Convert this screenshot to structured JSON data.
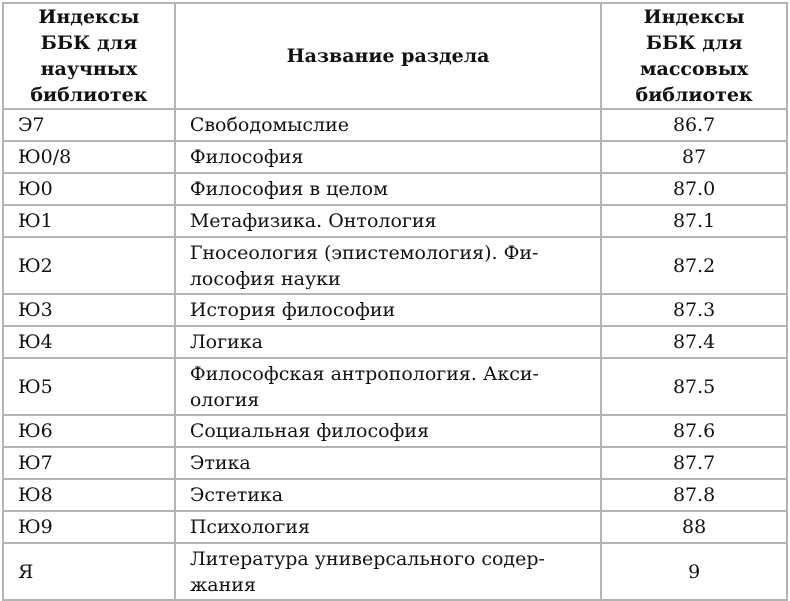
{
  "table": {
    "headers": [
      "Индексы ББК для научных библиотек",
      "Название раздела",
      "Индексы ББК для массовых библиотек"
    ],
    "rows": [
      {
        "sci": "Э7",
        "name": "Свободомыслие",
        "mass": "86.7"
      },
      {
        "sci": "Ю0/8",
        "name": "Философия",
        "mass": "87"
      },
      {
        "sci": "Ю0",
        "name": "Философия в целом",
        "mass": "87.0"
      },
      {
        "sci": "Ю1",
        "name": "Метафизика. Онтология",
        "mass": "87.1"
      },
      {
        "sci": "Ю2",
        "name": "Гносеология (эпистемология). Фи-лософия науки",
        "mass": "87.2"
      },
      {
        "sci": "Ю3",
        "name": "История философии",
        "mass": "87.3"
      },
      {
        "sci": "Ю4",
        "name": "Логика",
        "mass": "87.4"
      },
      {
        "sci": "Ю5",
        "name": "Философская антропология. Акси-ология",
        "mass": "87.5"
      },
      {
        "sci": "Ю6",
        "name": "Социальная философия",
        "mass": "87.6"
      },
      {
        "sci": "Ю7",
        "name": "Этика",
        "mass": "87.7"
      },
      {
        "sci": "Ю8",
        "name": "Эстетика",
        "mass": "87.8"
      },
      {
        "sci": "Ю9",
        "name": "Психология",
        "mass": "88"
      },
      {
        "sci": "Я",
        "name": "Литература универсального содер-жания",
        "mass": "9"
      }
    ]
  }
}
